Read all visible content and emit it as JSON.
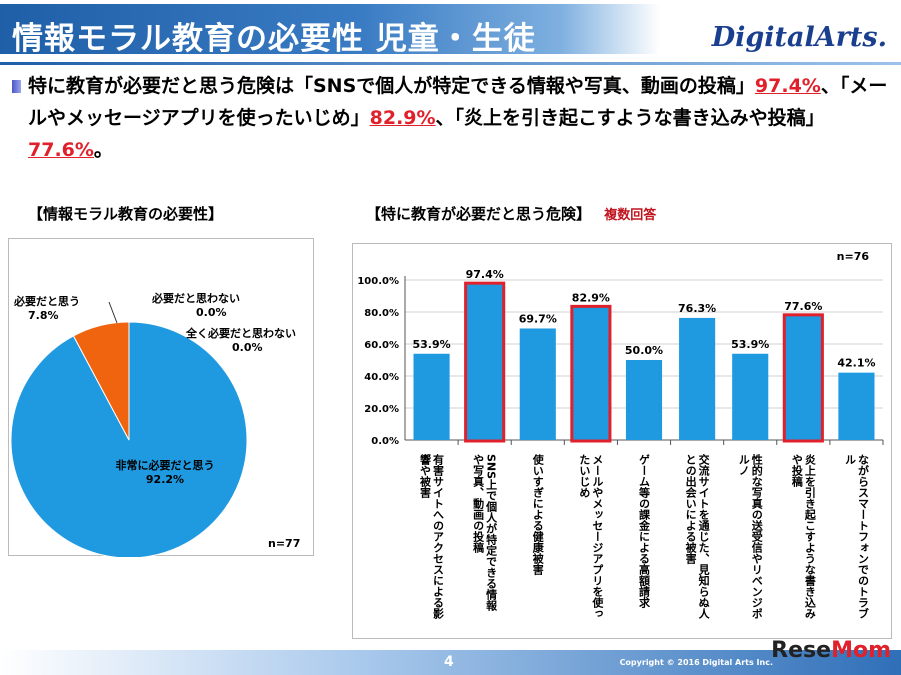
{
  "header": {
    "title": "情報モラル教育の必要性 児童・生徒",
    "logo": "DigitalArts."
  },
  "summary": {
    "p1": "特に教育が必要だと思う危険は「SNSで個人が特定できる情報や写真、動画の投稿」",
    "v1": "97.4%",
    "p2": "、「メールやメッセージアプリを使ったいじめ」",
    "v2": "82.9%",
    "p3": "、「炎上を引き起こすような書き込みや投稿」",
    "v3": "77.6%",
    "p4": "。"
  },
  "pie_section_title": "【情報モラル教育の必要性】",
  "bar_section_title": "【特に教育が必要だと思う危険】",
  "bar_section_note": "複数回答",
  "chart_data": [
    {
      "type": "pie",
      "n_label": "n=77",
      "slices": [
        {
          "label": "非常に必要だと思う",
          "value": 92.2,
          "value_label": "92.2%",
          "color": "#1f9ae0"
        },
        {
          "label": "必要だと思う",
          "value": 7.8,
          "value_label": "7.8%",
          "color": "#f0640f"
        },
        {
          "label": "必要だと思わない",
          "value": 0.0,
          "value_label": "0.0%",
          "color": "#999999"
        },
        {
          "label": "全く必要だと思わない",
          "value": 0.0,
          "value_label": "0.0%",
          "color": "#666666"
        }
      ]
    },
    {
      "type": "bar",
      "n_label": "n=76",
      "ylim": [
        0,
        100
      ],
      "yticks": [
        "0.0%",
        "20.0%",
        "40.0%",
        "60.0%",
        "80.0%",
        "100.0%"
      ],
      "bar_color": "#1f9ae0",
      "highlight_color": "#e0202a",
      "categories": [
        "有害サイトへのアクセスによる影響や被害",
        "SNS上で個人が特定できる情報や写真、動画の投稿",
        "使いすぎによる健康被害",
        "メールやメッセージアプリを使ったいじめ",
        "ゲーム等の課金による高額請求",
        "交流サイトを通じた、見知らぬ人との出会いによる被害",
        "性的な写真の送受信やリベンジポルノ",
        "炎上を引き起こすような書き込みや投稿",
        "ながらスマートフォンでのトラブル"
      ],
      "values": [
        53.9,
        97.4,
        69.7,
        82.9,
        50.0,
        76.3,
        53.9,
        77.6,
        42.1
      ],
      "value_labels": [
        "53.9%",
        "97.4%",
        "69.7%",
        "82.9%",
        "50.0%",
        "76.3%",
        "53.9%",
        "77.6%",
        "42.1%"
      ],
      "highlighted": [
        false,
        true,
        false,
        true,
        false,
        false,
        false,
        true,
        false
      ]
    }
  ],
  "footer": {
    "page": "4",
    "copyright": "Copyright © 2016 Digital Arts Inc.",
    "watermark_a": "Rese",
    "watermark_b": "Mom"
  }
}
